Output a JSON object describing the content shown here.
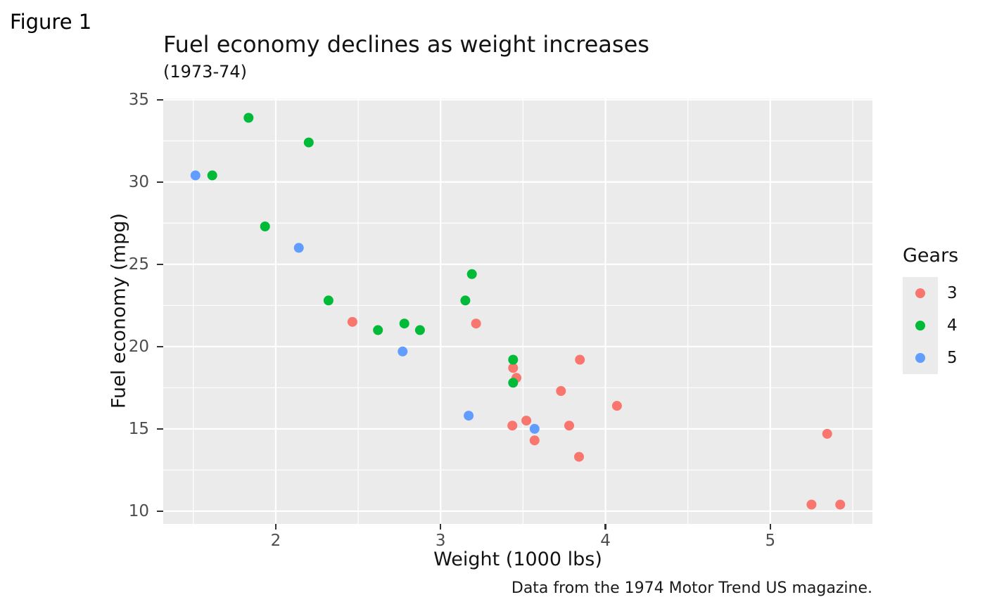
{
  "figure_tag": "Figure 1",
  "colors": {
    "panel_bg": "#EBEBEB",
    "grid": "#FFFFFF",
    "tick_label": "#4D4D4D",
    "tick_mark": "#333333",
    "gear3": "#F8766D",
    "gear4": "#00BA38",
    "gear5": "#619CFF"
  },
  "chart_data": {
    "type": "scatter",
    "title": "Fuel economy declines as weight increases",
    "subtitle": "(1973-74)",
    "caption": "Data from the 1974 Motor Trend US magazine.",
    "xlabel": "Weight (1000 lbs)",
    "ylabel": "Fuel economy (mpg)",
    "xlim": [
      1.3175,
      5.6195
    ],
    "ylim": [
      9.225,
      35.075
    ],
    "x_major_ticks": [
      2,
      3,
      4,
      5
    ],
    "x_minor_ticks": [
      1.5,
      2.5,
      3.5,
      4.5,
      5.5
    ],
    "y_major_ticks": [
      10,
      15,
      20,
      25,
      30,
      35
    ],
    "y_minor_ticks": [
      12.5,
      17.5,
      22.5,
      27.5,
      32.5
    ],
    "grid": true,
    "legend_title": "Gears",
    "legend_position": "right",
    "point_radius": 7,
    "series": [
      {
        "name": "3",
        "color": "#F8766D",
        "points": [
          [
            2.465,
            21.5
          ],
          [
            3.215,
            21.4
          ],
          [
            3.44,
            18.7
          ],
          [
            3.46,
            18.1
          ],
          [
            3.52,
            15.5
          ],
          [
            3.435,
            15.2
          ],
          [
            3.57,
            14.3
          ],
          [
            3.73,
            17.3
          ],
          [
            3.78,
            15.2
          ],
          [
            3.84,
            13.3
          ],
          [
            3.845,
            19.2
          ],
          [
            4.07,
            16.4
          ],
          [
            5.25,
            10.4
          ],
          [
            5.345,
            14.7
          ],
          [
            5.424,
            10.4
          ]
        ]
      },
      {
        "name": "4",
        "color": "#00BA38",
        "points": [
          [
            1.615,
            30.4
          ],
          [
            1.835,
            33.9
          ],
          [
            1.935,
            27.3
          ],
          [
            2.2,
            32.4
          ],
          [
            2.32,
            22.8
          ],
          [
            2.62,
            21.0
          ],
          [
            2.78,
            21.4
          ],
          [
            2.875,
            21.0
          ],
          [
            3.15,
            22.8
          ],
          [
            3.19,
            24.4
          ],
          [
            3.44,
            19.2
          ],
          [
            3.44,
            17.8
          ]
        ]
      },
      {
        "name": "5",
        "color": "#619CFF",
        "points": [
          [
            1.513,
            30.4
          ],
          [
            2.14,
            26.0
          ],
          [
            2.77,
            19.7
          ],
          [
            3.17,
            15.8
          ],
          [
            3.57,
            15.0
          ]
        ]
      }
    ]
  }
}
